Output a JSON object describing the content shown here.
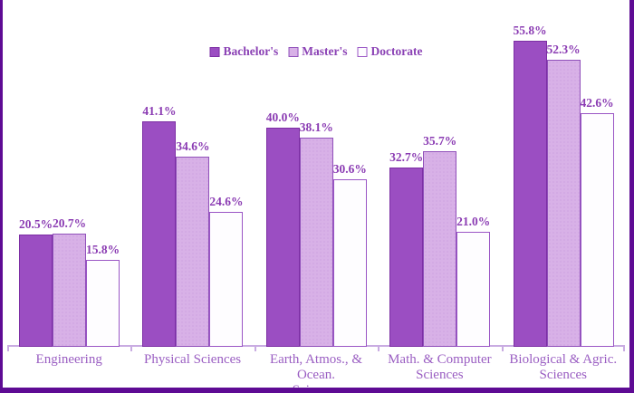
{
  "chart_data": {
    "type": "bar",
    "title": "",
    "xlabel": "",
    "ylabel": "",
    "unit": "%",
    "ylim": [
      0,
      60
    ],
    "grid": false,
    "legend_position": "top-center",
    "categories": [
      "Engineering",
      "Physical Sciences",
      "Earth, Atmos., & Ocean. Sciences",
      "Math. & Computer Sciences",
      "Biological & Agric. Sciences"
    ],
    "category_lines": [
      [
        "Engineering"
      ],
      [
        "Physical Sciences"
      ],
      [
        "Earth, Atmos., & Ocean.",
        "Sciences"
      ],
      [
        "Math. & Computer",
        "Sciences"
      ],
      [
        "Biological & Agric.",
        "Sciences"
      ]
    ],
    "series": [
      {
        "name": "Bachelor's",
        "values": [
          20.5,
          41.1,
          40.0,
          32.7,
          55.8
        ],
        "value_labels": [
          "20.5%",
          "41.1%",
          "40.0%",
          "32.7%",
          "55.8%"
        ]
      },
      {
        "name": "Master's",
        "values": [
          20.7,
          34.6,
          38.1,
          35.7,
          52.3
        ],
        "value_labels": [
          "20.7%",
          "34.6%",
          "38.1%",
          "35.7%",
          "52.3%"
        ]
      },
      {
        "name": "Doctorate",
        "values": [
          15.8,
          24.6,
          30.6,
          21.0,
          42.6
        ],
        "value_labels": [
          "15.8%",
          "24.6%",
          "30.6%",
          "21.0%",
          "42.6%"
        ]
      }
    ]
  },
  "colors": {
    "bachelor_fill": "#9b4ec2",
    "bachelor_border": "#7c2ea4",
    "master_fill": "#d8b1e7",
    "master_dot": "#c596dc",
    "master_border": "#9050ba",
    "doctorate_fill": "#fefdff",
    "doctorate_border": "#9a55c5",
    "value_label": "#8b3cb3",
    "category_label": "#9a5ec2",
    "legend_text": "#8b42b5",
    "axis_line": "#c9ace2",
    "frame_border": "#5e0b94"
  }
}
